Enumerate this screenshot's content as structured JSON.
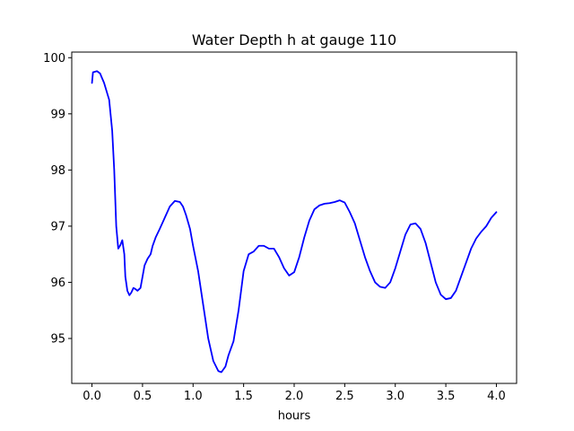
{
  "chart_data": {
    "type": "line",
    "title": "Water Depth h at gauge 110",
    "xlabel": "hours",
    "ylabel": "",
    "xlim": [
      -0.2,
      4.2
    ],
    "ylim": [
      94.2,
      100.1
    ],
    "xticks": [
      "0.0",
      "0.5",
      "1.0",
      "1.5",
      "2.0",
      "2.5",
      "3.0",
      "3.5",
      "4.0"
    ],
    "xtick_values": [
      0.0,
      0.5,
      1.0,
      1.5,
      2.0,
      2.5,
      3.0,
      3.5,
      4.0
    ],
    "yticks": [
      "95",
      "96",
      "97",
      "98",
      "99",
      "100"
    ],
    "ytick_values": [
      95,
      96,
      97,
      98,
      99,
      100
    ],
    "grid": false,
    "series": [
      {
        "color": "#0000ff",
        "x": [
          0.0,
          0.01,
          0.05,
          0.08,
          0.12,
          0.17,
          0.2,
          0.22,
          0.24,
          0.26,
          0.28,
          0.3,
          0.32,
          0.33,
          0.35,
          0.37,
          0.39,
          0.41,
          0.43,
          0.45,
          0.48,
          0.5,
          0.52,
          0.55,
          0.58,
          0.6,
          0.63,
          0.67,
          0.72,
          0.77,
          0.82,
          0.87,
          0.9,
          0.93,
          0.97,
          1.0,
          1.05,
          1.1,
          1.15,
          1.2,
          1.25,
          1.28,
          1.32,
          1.35,
          1.4,
          1.45,
          1.5,
          1.55,
          1.6,
          1.65,
          1.7,
          1.75,
          1.8,
          1.85,
          1.9,
          1.95,
          2.0,
          2.05,
          2.1,
          2.15,
          2.2,
          2.25,
          2.3,
          2.35,
          2.4,
          2.45,
          2.5,
          2.55,
          2.6,
          2.65,
          2.7,
          2.75,
          2.8,
          2.85,
          2.9,
          2.95,
          3.0,
          3.05,
          3.1,
          3.15,
          3.2,
          3.25,
          3.3,
          3.35,
          3.4,
          3.45,
          3.5,
          3.55,
          3.6,
          3.65,
          3.7,
          3.75,
          3.8,
          3.85,
          3.9,
          3.95,
          4.0
        ],
        "y": [
          99.55,
          99.74,
          99.76,
          99.72,
          99.55,
          99.25,
          98.7,
          98.0,
          97.0,
          96.6,
          96.66,
          96.75,
          96.5,
          96.1,
          95.85,
          95.77,
          95.82,
          95.9,
          95.88,
          95.85,
          95.9,
          96.1,
          96.3,
          96.42,
          96.5,
          96.65,
          96.8,
          96.95,
          97.15,
          97.35,
          97.45,
          97.43,
          97.35,
          97.2,
          96.95,
          96.65,
          96.2,
          95.6,
          95.0,
          94.6,
          94.42,
          94.4,
          94.5,
          94.7,
          94.95,
          95.5,
          96.2,
          96.5,
          96.55,
          96.65,
          96.65,
          96.6,
          96.6,
          96.45,
          96.25,
          96.12,
          96.18,
          96.45,
          96.8,
          97.1,
          97.3,
          97.37,
          97.4,
          97.41,
          97.43,
          97.46,
          97.42,
          97.25,
          97.05,
          96.75,
          96.45,
          96.2,
          96.0,
          95.92,
          95.9,
          96.0,
          96.25,
          96.55,
          96.85,
          97.03,
          97.05,
          96.95,
          96.7,
          96.35,
          96.0,
          95.78,
          95.7,
          95.72,
          95.85,
          96.1,
          96.35,
          96.6,
          96.78,
          96.9,
          97.0,
          97.15,
          97.25
        ]
      }
    ],
    "legend": "none"
  }
}
